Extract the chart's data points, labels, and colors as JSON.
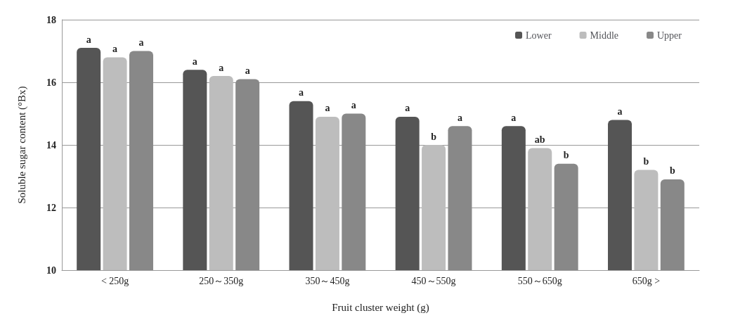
{
  "chart_data": {
    "type": "bar",
    "xlabel": "Fruit cluster weight (g)",
    "ylabel": "Soluble sugar content (°Bx)",
    "categories": [
      "< 250g",
      "250～350g",
      "350～450g",
      "450～550g",
      "550～650g",
      "650g >"
    ],
    "series": [
      {
        "name": "Lower",
        "color": "#555555",
        "values": [
          17.1,
          16.4,
          15.4,
          14.9,
          14.6,
          14.8
        ],
        "value_labels": [
          "a",
          "a",
          "a",
          "a",
          "a",
          "a"
        ]
      },
      {
        "name": "Middle",
        "color": "#bdbdbd",
        "values": [
          16.8,
          16.2,
          14.9,
          14.0,
          13.9,
          13.2
        ],
        "value_labels": [
          "a",
          "a",
          "a",
          "b",
          "ab",
          "b"
        ]
      },
      {
        "name": "Upper",
        "color": "#888888",
        "values": [
          17.0,
          16.1,
          15.0,
          14.6,
          13.4,
          12.9
        ],
        "value_labels": [
          "a",
          "a",
          "a",
          "a",
          "b",
          "b"
        ]
      }
    ],
    "ylim": [
      10,
      18
    ],
    "yticks": [
      10,
      12,
      14,
      16,
      18
    ],
    "grid": "y",
    "legend": "top right"
  }
}
